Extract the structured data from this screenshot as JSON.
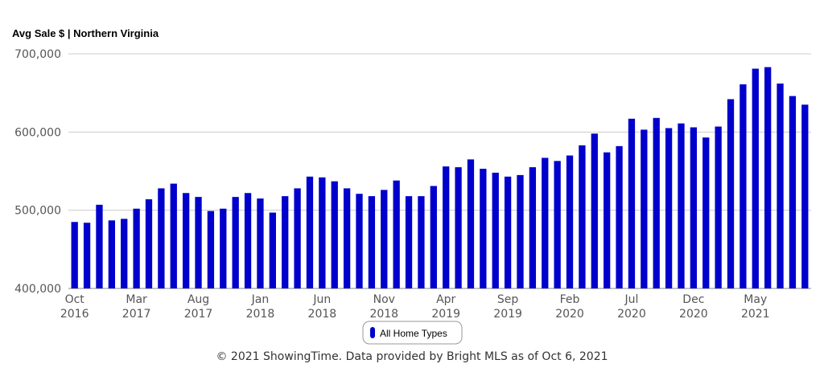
{
  "chart_data": {
    "type": "bar",
    "title": "Avg Sale $ | Northern Virginia",
    "categories": [
      "Oct 2016",
      null,
      null,
      null,
      null,
      "Mar 2017",
      null,
      null,
      null,
      null,
      "Aug 2017",
      null,
      null,
      null,
      null,
      "Jan 2018",
      null,
      null,
      null,
      null,
      "Jun 2018",
      null,
      null,
      null,
      null,
      "Nov 2018",
      null,
      null,
      null,
      null,
      "Apr 2019",
      null,
      null,
      null,
      null,
      "Sep 2019",
      null,
      null,
      null,
      null,
      "Feb 2020",
      null,
      null,
      null,
      null,
      "Jul 2020",
      null,
      null,
      null,
      null,
      "Dec 2020",
      null,
      null,
      null,
      null,
      "May 2021",
      null,
      null,
      null,
      null
    ],
    "series": [
      {
        "name": "All Home Types",
        "color": "#0000cc",
        "values": [
          485000,
          484000,
          507000,
          487000,
          489000,
          502000,
          514000,
          528000,
          534000,
          522000,
          517000,
          499000,
          502000,
          517000,
          522000,
          515000,
          497000,
          518000,
          528000,
          543000,
          542000,
          537000,
          528000,
          521000,
          518000,
          526000,
          538000,
          518000,
          518000,
          531000,
          556000,
          555000,
          565000,
          553000,
          548000,
          543000,
          545000,
          555000,
          567000,
          563000,
          570000,
          583000,
          598000,
          574000,
          582000,
          617000,
          603000,
          618000,
          605000,
          611000,
          606000,
          593000,
          607000,
          642000,
          661000,
          681000,
          683000,
          662000,
          646000,
          635000
        ]
      }
    ],
    "ylim": [
      400000,
      700000
    ],
    "yticks": [
      {
        "value": 400000,
        "label": "400,000"
      },
      {
        "value": 500000,
        "label": "500,000"
      },
      {
        "value": 600000,
        "label": "600,000"
      },
      {
        "value": 700000,
        "label": "700,000"
      }
    ],
    "grid": true,
    "legend": "bottom",
    "annotations": [
      "© 2021 ShowingTime. Data provided by Bright MLS as of Oct 6, 2021"
    ]
  }
}
